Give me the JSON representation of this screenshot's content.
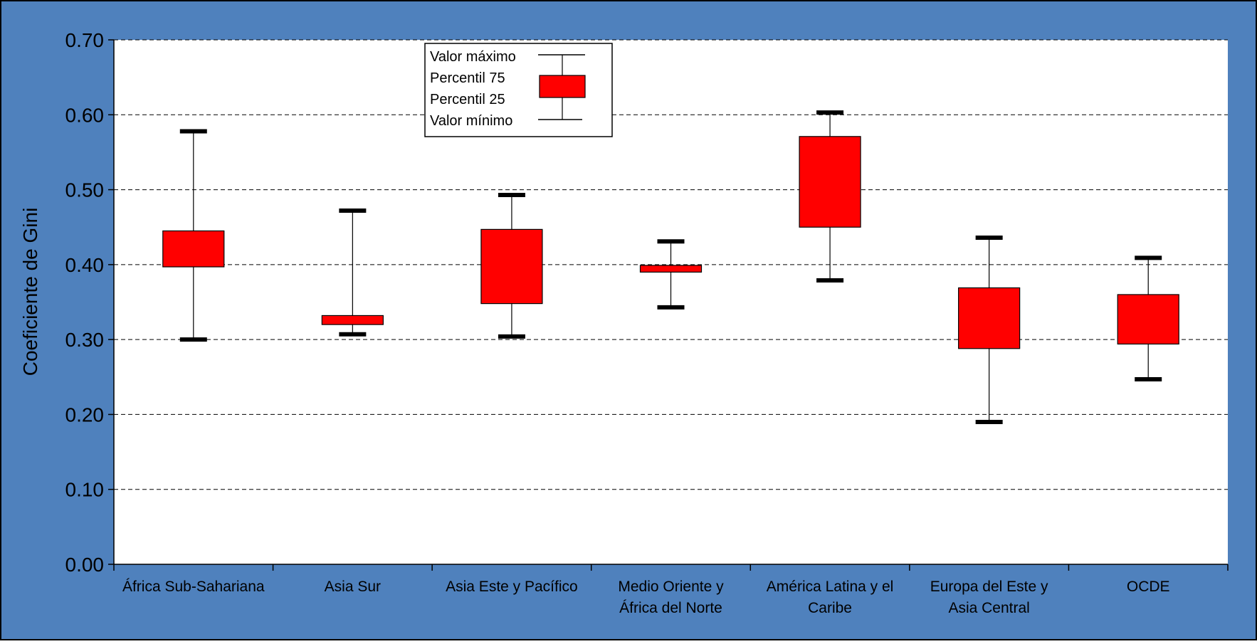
{
  "chart_data": {
    "type": "box",
    "ylabel": "Coeficiente de Gini",
    "ylim": [
      0,
      0.7
    ],
    "y_ticks": [
      "0.00",
      "0.10",
      "0.20",
      "0.30",
      "0.40",
      "0.50",
      "0.60",
      "0.70"
    ],
    "grid": "horizontal dashed",
    "colors": {
      "frame": "#4F81BD",
      "box_fill": "#FF0000",
      "plot_bg": "#FFFFFF"
    },
    "legend": {
      "position": "top-left",
      "items": [
        "Valor máximo",
        "Percentil 75",
        "Percentil 25",
        "Valor mínimo"
      ]
    },
    "categories": [
      {
        "label_lines": [
          "África Sub-Sahariana"
        ],
        "min": 0.3,
        "q1": 0.397,
        "q3": 0.445,
        "max": 0.578
      },
      {
        "label_lines": [
          "Asia Sur"
        ],
        "min": 0.307,
        "q1": 0.32,
        "q3": 0.332,
        "max": 0.472
      },
      {
        "label_lines": [
          "Asia Este y Pacífico"
        ],
        "min": 0.304,
        "q1": 0.348,
        "q3": 0.447,
        "max": 0.493
      },
      {
        "label_lines": [
          "Medio Oriente y",
          "África del Norte"
        ],
        "min": 0.343,
        "q1": 0.39,
        "q3": 0.399,
        "max": 0.431
      },
      {
        "label_lines": [
          "América Latina y el",
          "Caribe"
        ],
        "min": 0.379,
        "q1": 0.45,
        "q3": 0.571,
        "max": 0.603
      },
      {
        "label_lines": [
          "Europa del Este y",
          "Asia Central"
        ],
        "min": 0.19,
        "q1": 0.288,
        "q3": 0.369,
        "max": 0.436
      },
      {
        "label_lines": [
          "OCDE"
        ],
        "min": 0.247,
        "q1": 0.294,
        "q3": 0.36,
        "max": 0.409
      }
    ]
  }
}
